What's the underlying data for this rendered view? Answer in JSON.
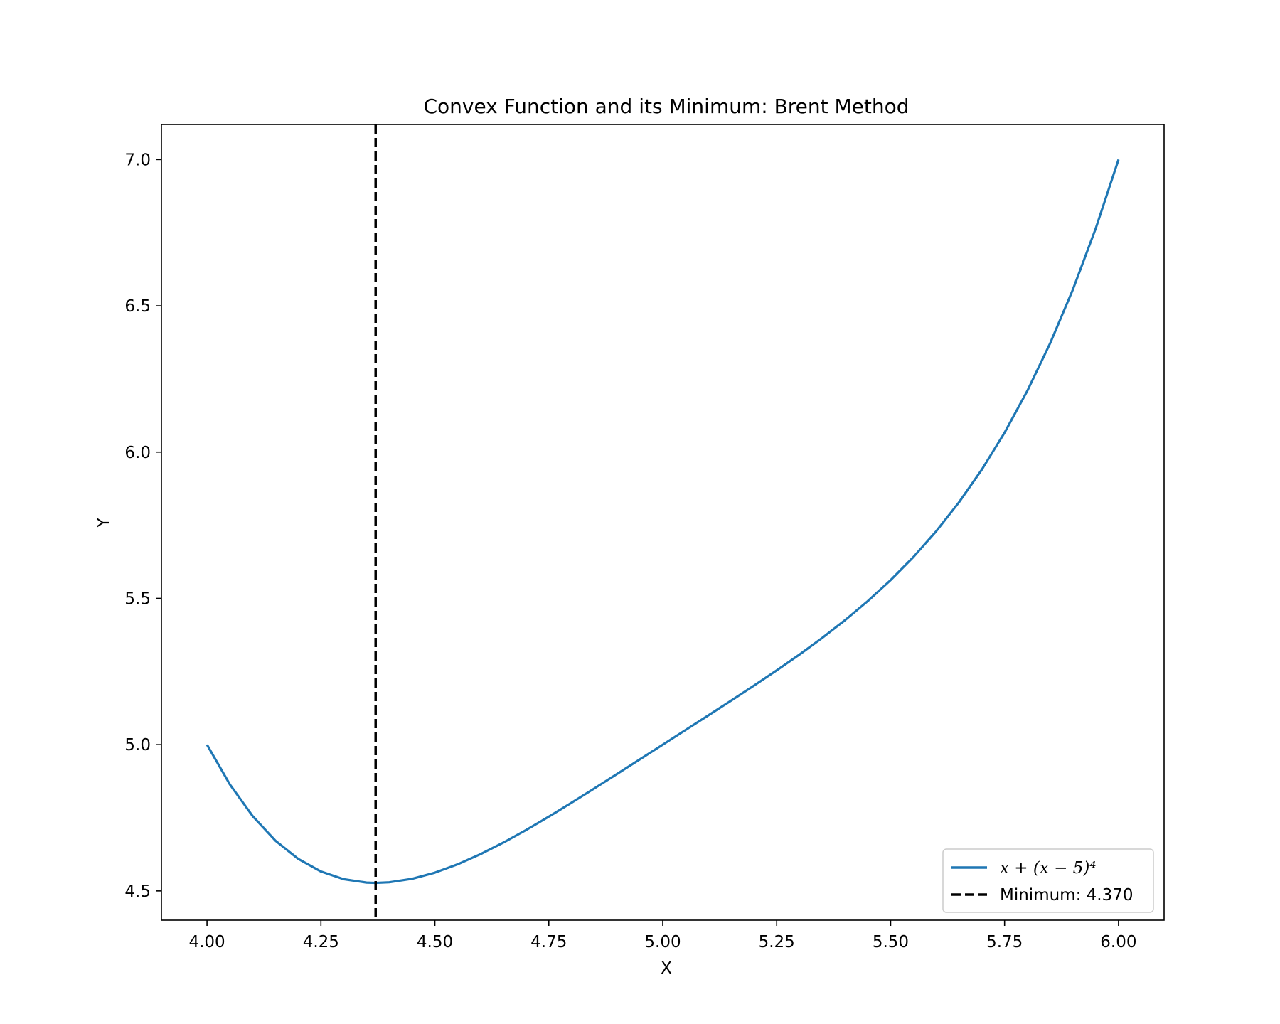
{
  "chart_data": {
    "type": "line",
    "title": "Convex Function and its Minimum: Brent Method",
    "xlabel": "X",
    "ylabel": "Y",
    "xlim": [
      3.9,
      6.1
    ],
    "ylim": [
      4.4,
      7.12
    ],
    "x_ticks": [
      4.0,
      4.25,
      4.5,
      4.75,
      5.0,
      5.25,
      5.5,
      5.75,
      6.0
    ],
    "x_tick_labels": [
      "4.00",
      "4.25",
      "4.50",
      "4.75",
      "5.00",
      "5.25",
      "5.50",
      "5.75",
      "6.00"
    ],
    "y_ticks": [
      4.5,
      5.0,
      5.5,
      6.0,
      6.5,
      7.0
    ],
    "y_tick_labels": [
      "4.5",
      "5.0",
      "5.5",
      "6.0",
      "6.5",
      "7.0"
    ],
    "grid": false,
    "legend_position": "bottom-right",
    "series": [
      {
        "name": "x + (x − 5)⁴",
        "color": "#1f77b4",
        "style": "solid",
        "x": [
          4.0,
          4.05,
          4.1,
          4.15,
          4.2,
          4.25,
          4.3,
          4.35,
          4.37,
          4.4,
          4.45,
          4.5,
          4.55,
          4.6,
          4.65,
          4.7,
          4.75,
          4.8,
          4.85,
          4.9,
          4.95,
          5.0,
          5.05,
          5.1,
          5.15,
          5.2,
          5.25,
          5.3,
          5.35,
          5.4,
          5.45,
          5.5,
          5.55,
          5.6,
          5.65,
          5.7,
          5.75,
          5.8,
          5.85,
          5.9,
          5.95,
          6.0
        ],
        "y": [
          5.0,
          4.8645,
          4.7561,
          4.672,
          4.6096,
          4.5664,
          4.5401,
          4.5285,
          4.5275,
          4.5296,
          4.5415,
          4.5625,
          4.591,
          4.6256,
          4.665,
          4.7081,
          4.7539,
          4.8016,
          4.8505,
          4.9001,
          4.95,
          5.0,
          5.05,
          5.1001,
          5.1505,
          5.2016,
          5.2539,
          5.3081,
          5.365,
          5.4256,
          5.491,
          5.5625,
          5.6415,
          5.7296,
          5.8285,
          5.9401,
          6.0664,
          6.2096,
          6.372,
          6.5561,
          6.7645,
          7.0
        ]
      }
    ],
    "vline": {
      "x": 4.37,
      "name": "Minimum: 4.370",
      "color": "#000000",
      "style": "dashed"
    }
  }
}
